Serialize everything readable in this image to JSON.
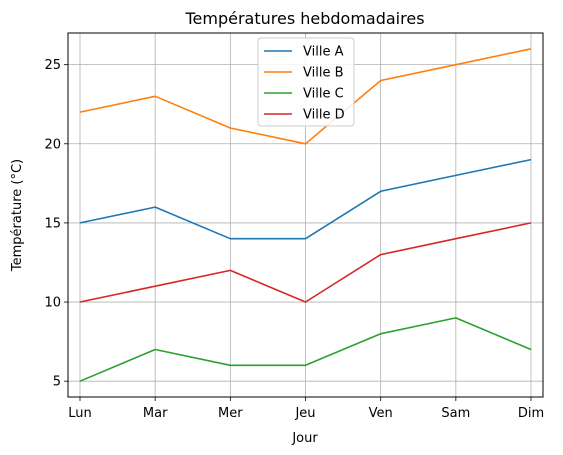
{
  "chart_data": {
    "type": "line",
    "title": "Températures hebdomadaires",
    "xlabel": "Jour",
    "ylabel": "Température (°C)",
    "categories": [
      "Lun",
      "Mar",
      "Mer",
      "Jeu",
      "Ven",
      "Sam",
      "Dim"
    ],
    "series": [
      {
        "name": "Ville A",
        "values": [
          15,
          16,
          14,
          14,
          17,
          18,
          19
        ],
        "color": "#1f77b4"
      },
      {
        "name": "Ville B",
        "values": [
          22,
          23,
          21,
          20,
          24,
          25,
          26
        ],
        "color": "#ff7f0e"
      },
      {
        "name": "Ville C",
        "values": [
          5,
          7,
          6,
          6,
          8,
          9,
          7
        ],
        "color": "#2ca02c"
      },
      {
        "name": "Ville D",
        "values": [
          10,
          11,
          12,
          10,
          13,
          14,
          15
        ],
        "color": "#d62728"
      }
    ],
    "ylim": [
      4,
      27
    ],
    "yticks": [
      5,
      10,
      15,
      20,
      25
    ],
    "grid": true,
    "legend_position": "top-center"
  }
}
